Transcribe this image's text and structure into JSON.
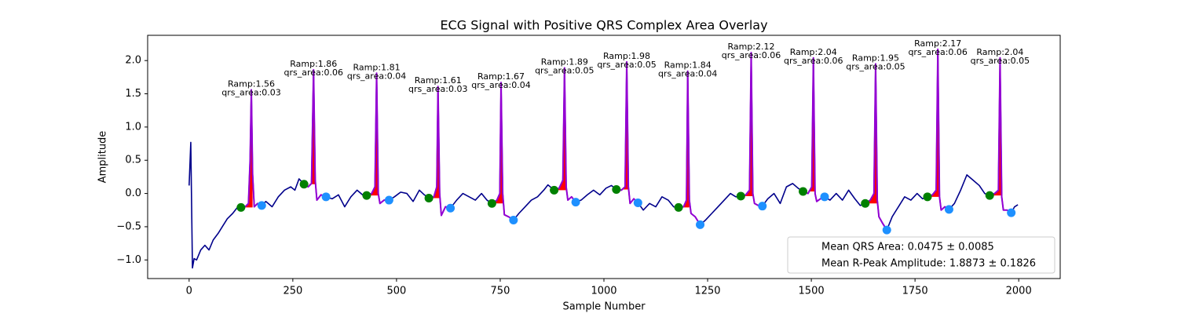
{
  "chart_data": {
    "type": "ecg",
    "title": "ECG Signal with Positive QRS Complex Area Overlay",
    "xlabel": "Sample Number",
    "ylabel": "Amplitude",
    "xlim": [
      -100,
      2100
    ],
    "ylim": [
      -1.28,
      2.38
    ],
    "xticks": [
      0,
      250,
      500,
      750,
      1000,
      1250,
      1500,
      1750,
      2000
    ],
    "yticks": [
      {
        "value": -1,
        "label": "−1.0"
      },
      {
        "value": -0.5,
        "label": "−0.5"
      },
      {
        "value": 0,
        "label": "0.0"
      },
      {
        "value": 0.5,
        "label": "0.5"
      },
      {
        "value": 1,
        "label": "1.0"
      },
      {
        "value": 1.5,
        "label": "1.5"
      },
      {
        "value": 2,
        "label": "2.0"
      }
    ],
    "signal": {
      "color": "#00008b",
      "x": [
        0,
        4,
        8,
        12,
        18,
        28,
        38,
        48,
        58,
        70,
        80,
        92,
        105,
        115,
        125,
        135,
        143,
        147,
        150,
        153,
        157,
        165,
        175,
        185,
        200,
        215,
        230,
        245,
        255,
        265,
        277,
        287,
        295,
        300,
        304,
        308,
        318,
        330,
        345,
        360,
        375,
        390,
        405,
        418,
        428,
        440,
        448,
        452,
        456,
        460,
        470,
        482,
        495,
        510,
        525,
        540,
        555,
        567,
        578,
        590,
        597,
        600,
        604,
        608,
        618,
        630,
        645,
        660,
        675,
        690,
        705,
        718,
        730,
        742,
        749,
        752,
        756,
        760,
        770,
        782,
        795,
        810,
        825,
        840,
        855,
        865,
        880,
        892,
        901,
        905,
        909,
        913,
        922,
        932,
        945,
        960,
        975,
        990,
        1005,
        1018,
        1030,
        1042,
        1051,
        1055,
        1059,
        1063,
        1072,
        1082,
        1095,
        1110,
        1125,
        1140,
        1155,
        1168,
        1180,
        1192,
        1199,
        1202,
        1206,
        1210,
        1220,
        1232,
        1245,
        1260,
        1275,
        1290,
        1305,
        1318,
        1330,
        1342,
        1351,
        1355,
        1359,
        1363,
        1372,
        1382,
        1395,
        1410,
        1425,
        1440,
        1455,
        1468,
        1480,
        1492,
        1501,
        1505,
        1509,
        1513,
        1522,
        1532,
        1545,
        1560,
        1575,
        1590,
        1605,
        1618,
        1630,
        1642,
        1651,
        1655,
        1659,
        1663,
        1672,
        1682,
        1695,
        1710,
        1725,
        1740,
        1755,
        1768,
        1780,
        1792,
        1801,
        1805,
        1809,
        1813,
        1822,
        1832,
        1845,
        1860,
        1875,
        1890,
        1905,
        1918,
        1930,
        1942,
        1951,
        1955,
        1959,
        1963,
        1972,
        1982,
        1990,
        1998
      ],
      "y": [
        0.12,
        0.77,
        -1.12,
        -0.98,
        -1.0,
        -0.85,
        -0.78,
        -0.85,
        -0.7,
        -0.6,
        -0.5,
        -0.38,
        -0.3,
        -0.22,
        -0.21,
        -0.2,
        -0.15,
        0.5,
        1.56,
        0.3,
        -0.2,
        -0.15,
        -0.18,
        -0.12,
        -0.2,
        -0.05,
        0.05,
        0.1,
        0.05,
        0.22,
        0.14,
        0.1,
        0.15,
        1.86,
        0.2,
        -0.1,
        -0.02,
        -0.05,
        -0.08,
        -0.02,
        -0.2,
        -0.05,
        0.05,
        -0.02,
        -0.03,
        0.0,
        0.1,
        1.81,
        0.0,
        -0.15,
        -0.1,
        -0.1,
        -0.05,
        0.02,
        0.0,
        -0.12,
        0.05,
        -0.02,
        -0.07,
        -0.05,
        0.1,
        1.61,
        0.0,
        -0.33,
        -0.2,
        -0.22,
        -0.1,
        0.0,
        -0.05,
        -0.1,
        0.0,
        -0.1,
        -0.15,
        -0.1,
        0.0,
        1.67,
        0.0,
        -0.32,
        -0.35,
        -0.4,
        -0.3,
        -0.2,
        -0.1,
        -0.05,
        0.05,
        0.13,
        0.05,
        0.08,
        0.2,
        1.89,
        0.1,
        -0.1,
        -0.05,
        -0.13,
        -0.1,
        -0.02,
        0.05,
        -0.02,
        0.08,
        0.12,
        0.06,
        0.05,
        0.1,
        1.98,
        0.1,
        -0.15,
        -0.08,
        -0.14,
        -0.25,
        -0.15,
        -0.2,
        -0.05,
        -0.1,
        -0.2,
        -0.21,
        -0.2,
        -0.1,
        1.84,
        -0.1,
        -0.3,
        -0.35,
        -0.47,
        -0.4,
        -0.3,
        -0.2,
        -0.1,
        0.0,
        -0.05,
        -0.04,
        -0.02,
        0.05,
        2.12,
        0.0,
        -0.15,
        -0.18,
        -0.19,
        -0.08,
        0.0,
        -0.15,
        0.1,
        0.15,
        0.08,
        0.03,
        0.0,
        0.1,
        2.04,
        0.0,
        -0.12,
        -0.08,
        -0.05,
        -0.1,
        0.0,
        -0.1,
        0.05,
        -0.08,
        -0.18,
        -0.15,
        -0.1,
        0.0,
        1.95,
        -0.1,
        -0.35,
        -0.45,
        -0.55,
        -0.35,
        -0.2,
        -0.05,
        -0.1,
        0.0,
        -0.08,
        -0.05,
        -0.02,
        0.05,
        2.17,
        -0.05,
        -0.25,
        -0.2,
        -0.24,
        -0.15,
        0.05,
        0.28,
        0.2,
        0.12,
        0.0,
        -0.03,
        0.0,
        0.05,
        2.04,
        -0.05,
        -0.25,
        -0.25,
        -0.29,
        -0.2,
        -0.17
      ]
    },
    "qrs_color": "#9400d3",
    "area_color": "#ff0000",
    "onsets": {
      "color": "#008000",
      "x": [
        125,
        277,
        428,
        578,
        730,
        880,
        1030,
        1180,
        1330,
        1480,
        1630,
        1780,
        1930
      ],
      "y": [
        -0.21,
        0.14,
        -0.03,
        -0.07,
        -0.15,
        0.05,
        0.06,
        -0.21,
        -0.04,
        0.03,
        -0.15,
        -0.05,
        -0.03
      ]
    },
    "offsets": {
      "color": "#1e90ff",
      "x": [
        175,
        330,
        482,
        630,
        782,
        932,
        1082,
        1232,
        1382,
        1532,
        1682,
        1832,
        1982
      ],
      "y": [
        -0.18,
        -0.05,
        -0.1,
        -0.22,
        -0.4,
        -0.13,
        -0.14,
        -0.47,
        -0.19,
        -0.05,
        -0.55,
        -0.24,
        -0.29
      ]
    },
    "annotations": [
      {
        "x": 150,
        "y": 1.56,
        "lines": [
          "Ramp:1.56",
          "qrs_area:0.03"
        ]
      },
      {
        "x": 300,
        "y": 1.86,
        "lines": [
          "Ramp:1.86",
          "qrs_area:0.06"
        ]
      },
      {
        "x": 452,
        "y": 1.81,
        "lines": [
          "Ramp:1.81",
          "qrs_area:0.04"
        ]
      },
      {
        "x": 600,
        "y": 1.61,
        "lines": [
          "Ramp:1.61",
          "qrs_area:0.03"
        ]
      },
      {
        "x": 752,
        "y": 1.67,
        "lines": [
          "Ramp:1.67",
          "qrs_area:0.04"
        ]
      },
      {
        "x": 905,
        "y": 1.89,
        "lines": [
          "Ramp:1.89",
          "qrs_area:0.05"
        ]
      },
      {
        "x": 1055,
        "y": 1.98,
        "lines": [
          "Ramp:1.98",
          "qrs_area:0.05"
        ]
      },
      {
        "x": 1202,
        "y": 1.84,
        "lines": [
          "Ramp:1.84",
          "qrs_area:0.04"
        ]
      },
      {
        "x": 1355,
        "y": 2.12,
        "lines": [
          "Ramp:2.12",
          "qrs_area:0.06"
        ]
      },
      {
        "x": 1505,
        "y": 2.04,
        "lines": [
          "Ramp:2.04",
          "qrs_area:0.06"
        ]
      },
      {
        "x": 1655,
        "y": 1.95,
        "lines": [
          "Ramp:1.95",
          "qrs_area:0.05"
        ]
      },
      {
        "x": 1805,
        "y": 2.17,
        "lines": [
          "Ramp:2.17",
          "qrs_area:0.06"
        ]
      },
      {
        "x": 1955,
        "y": 2.04,
        "lines": [
          "Ramp:2.04",
          "qrs_area:0.05"
        ]
      }
    ],
    "legend": [
      "Mean QRS Area: 0.0475 ± 0.0085",
      "Mean R-Peak Amplitude: 1.8873 ± 0.1826"
    ],
    "legend_loc": "lower right"
  }
}
